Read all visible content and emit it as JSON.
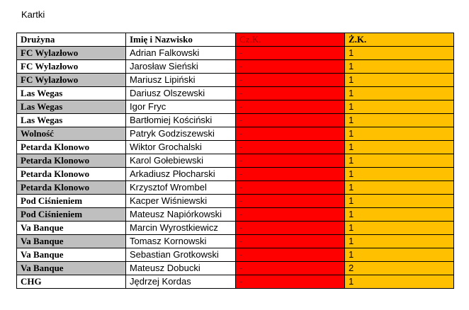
{
  "caption": "Kartki",
  "colors": {
    "red": "#ff0000",
    "yellow": "#ffc000",
    "shade": "#bfbfbf"
  },
  "headers": {
    "team": "Drużyna",
    "name": "Imię i Nazwisko",
    "red": "Cz.K.",
    "yellow": "Ż.K."
  },
  "rows": [
    {
      "team": "FC Wylazłowo",
      "name": "Adrian Falkowski",
      "red": "-",
      "yellow": "1",
      "shaded": true
    },
    {
      "team": "FC Wylazłowo",
      "name": "Jarosław Sieński",
      "red": "-",
      "yellow": "1",
      "shaded": false
    },
    {
      "team": "FC Wylazłowo",
      "name": "Mariusz Lipiński",
      "red": "-",
      "yellow": "1",
      "shaded": true
    },
    {
      "team": "Las Wegas",
      "name": "Dariusz Olszewski",
      "red": "-",
      "yellow": "1",
      "shaded": false
    },
    {
      "team": "Las Wegas",
      "name": "Igor Fryc",
      "red": "-",
      "yellow": "1",
      "shaded": true
    },
    {
      "team": "Las Wegas",
      "name": "Bartłomiej Kościński",
      "red": "-",
      "yellow": "1",
      "shaded": false
    },
    {
      "team": "Wolność",
      "name": "Patryk Godziszewski",
      "red": "-",
      "yellow": "1",
      "shaded": true
    },
    {
      "team": "Petarda Klonowo",
      "name": "Wiktor Grochalski",
      "red": "-",
      "yellow": "1",
      "shaded": false
    },
    {
      "team": "Petarda Klonowo",
      "name": "Karol Gołebiewski",
      "red": "-",
      "yellow": "1",
      "shaded": true
    },
    {
      "team": "Petarda Klonowo",
      "name": "Arkadiusz Płocharski",
      "red": "-",
      "yellow": "1",
      "shaded": false
    },
    {
      "team": "Petarda Klonowo",
      "name": "Krzysztof Wrombel",
      "red": "-",
      "yellow": "1",
      "shaded": true
    },
    {
      "team": "Pod Ciśnieniem",
      "name": "Kacper Wiśniewski",
      "red": "-",
      "yellow": "1",
      "shaded": false
    },
    {
      "team": "Pod Ciśnieniem",
      "name": "Mateusz Napiórkowski",
      "red": "-",
      "yellow": "1",
      "shaded": true
    },
    {
      "team": "Va Banque",
      "name": "Marcin Wyrostkiewicz",
      "red": "-",
      "yellow": "1",
      "shaded": false
    },
    {
      "team": "Va Banque",
      "name": "Tomasz Kornowski",
      "red": "-",
      "yellow": "1",
      "shaded": true
    },
    {
      "team": "Va Banque",
      "name": "Sebastian Grotkowski",
      "red": "-",
      "yellow": "1",
      "shaded": false
    },
    {
      "team": "Va Banque",
      "name": "Mateusz Dobucki",
      "red": "-",
      "yellow": "2",
      "shaded": true
    },
    {
      "team": "CHG",
      "name": "Jędrzej Kordas",
      "red": "-",
      "yellow": "1",
      "shaded": false
    }
  ]
}
